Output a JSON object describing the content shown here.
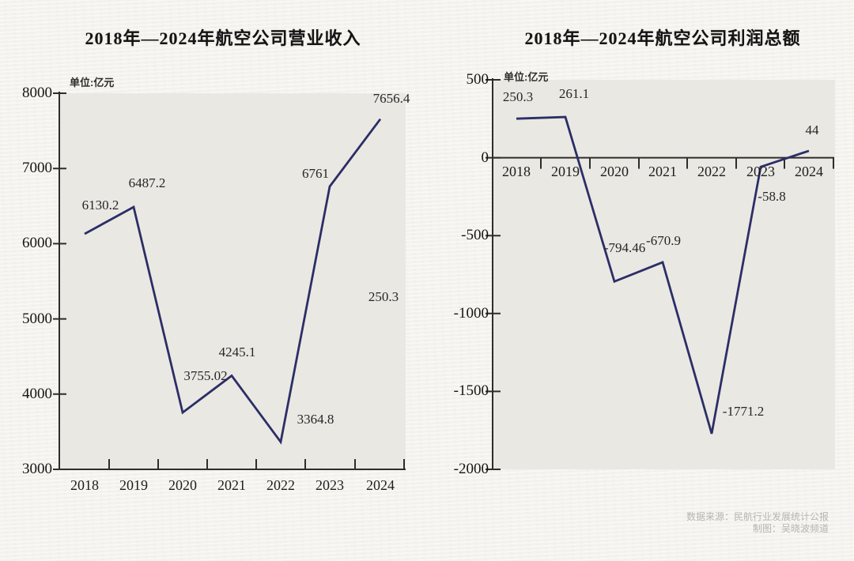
{
  "page": {
    "background_color": "#f6f5f0",
    "plot_background_color": "#e9e8e3",
    "line_color": "#2c2e66",
    "axis_color": "#2e2d2b"
  },
  "footer": {
    "source_line": "数据来源：民航行业发展统计公报",
    "credit_line": "制图：吴晓波频道"
  },
  "chart_data": [
    {
      "type": "line",
      "title": "2018年—2024年航空公司营业收入",
      "unit_label": "单位:亿元",
      "categories": [
        "2018",
        "2019",
        "2020",
        "2021",
        "2022",
        "2023",
        "2024"
      ],
      "values": [
        6130.2,
        6487.2,
        3755.02,
        4245.1,
        3364.8,
        6761,
        7656.4
      ],
      "point_labels": [
        "6130.2",
        "6487.2",
        "3755.02",
        "4245.1",
        "3364.8",
        "6761",
        "7656.4"
      ],
      "extra_label": "250.3",
      "xlabel": "",
      "ylabel": "亿元",
      "ylim": [
        3000,
        8000
      ],
      "y_ticks": [
        8000,
        7000,
        6000,
        5000,
        4000,
        3000
      ],
      "grid": false,
      "legend": "none",
      "markers": "none"
    },
    {
      "type": "line",
      "title": "2018年—2024年航空公司利润总额",
      "unit_label": "单位:亿元",
      "categories": [
        "2018",
        "2019",
        "2020",
        "2021",
        "2022",
        "2023",
        "2024"
      ],
      "values": [
        250.3,
        261.1,
        -794.46,
        -670.9,
        -1771.2,
        -58.8,
        44
      ],
      "point_labels": [
        "250.3",
        "261.1",
        "-794.46",
        "-670.9",
        "-1771.2",
        "-58.8",
        "44"
      ],
      "xlabel": "",
      "ylabel": "亿元",
      "ylim": [
        -2000,
        500
      ],
      "y_ticks": [
        500,
        0,
        -500,
        -1000,
        -1500,
        -2000
      ],
      "zero_baseline": true,
      "grid": false,
      "legend": "none",
      "markers": "none"
    }
  ]
}
